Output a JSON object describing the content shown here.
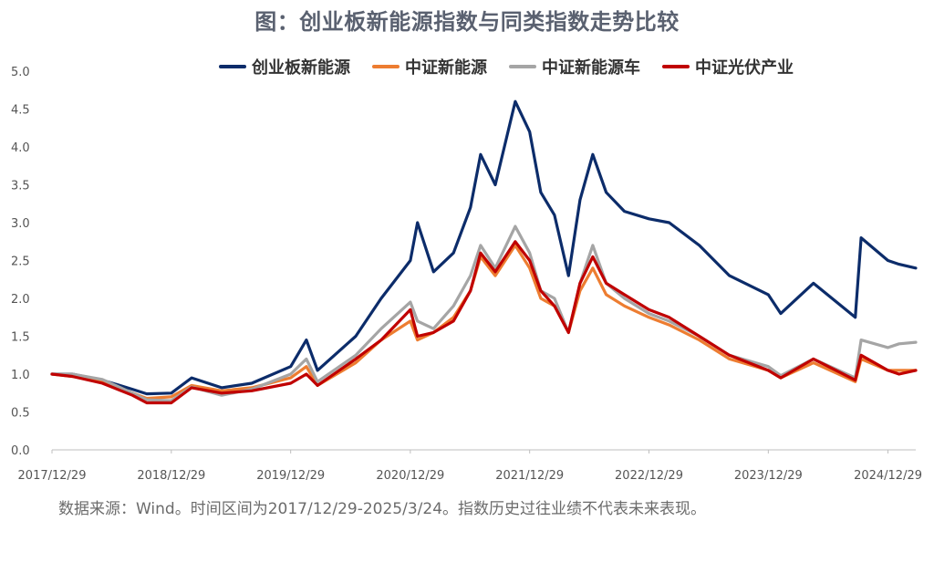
{
  "title": "图：创业板新能源指数与同类指数走势比较",
  "source": "数据来源：Wind。时间区间为2017/12/29-2025/3/24。指数历史过往业绩不代表未来表现。",
  "chart_data": {
    "type": "line",
    "title": "图：创业板新能源指数与同类指数走势比较",
    "xlabel": "",
    "ylabel": "",
    "ylim": [
      0,
      5
    ],
    "y_ticks": [
      "0.0",
      "0.5",
      "1.0",
      "1.5",
      "2.0",
      "2.5",
      "3.0",
      "3.5",
      "4.0",
      "4.5",
      "5.0"
    ],
    "x_ticks": [
      "2017/12/29",
      "2018/12/29",
      "2019/12/29",
      "2020/12/29",
      "2021/12/29",
      "2022/12/29",
      "2023/12/29",
      "2024/12/29"
    ],
    "x_range": [
      "2017/12/29",
      "2025/3/24"
    ],
    "grid": false,
    "legend_position": "top",
    "x": [
      "2017/12/29",
      "2018/03/01",
      "2018/06/01",
      "2018/09/01",
      "2018/10/15",
      "2018/12/29",
      "2019/03/01",
      "2019/06/01",
      "2019/09/01",
      "2019/12/29",
      "2020/02/15",
      "2020/03/20",
      "2020/07/15",
      "2020/10/01",
      "2020/12/29",
      "2021/01/20",
      "2021/03/10",
      "2021/05/10",
      "2021/07/01",
      "2021/08/01",
      "2021/09/15",
      "2021/11/15",
      "2021/12/29",
      "2022/02/01",
      "2022/03/15",
      "2022/04/27",
      "2022/06/01",
      "2022/07/10",
      "2022/08/20",
      "2022/10/15",
      "2022/12/29",
      "2023/03/01",
      "2023/06/01",
      "2023/09/01",
      "2023/12/29",
      "2024/02/05",
      "2024/05/15",
      "2024/09/20",
      "2024/10/08",
      "2024/12/29",
      "2025/02/01",
      "2025/03/24"
    ],
    "series": [
      {
        "name": "创业板新能源",
        "color": "#0c2c6a",
        "values": [
          1.0,
          1.0,
          0.92,
          0.8,
          0.74,
          0.75,
          0.95,
          0.82,
          0.88,
          1.1,
          1.45,
          1.05,
          1.5,
          2.0,
          2.5,
          3.0,
          2.35,
          2.6,
          3.2,
          3.9,
          3.5,
          4.6,
          4.2,
          3.4,
          3.1,
          2.3,
          3.3,
          3.9,
          3.4,
          3.15,
          3.05,
          3.0,
          2.7,
          2.3,
          2.05,
          1.8,
          2.2,
          1.75,
          2.8,
          2.5,
          2.45,
          2.4
        ]
      },
      {
        "name": "中证新能源",
        "color": "#ed7d31",
        "values": [
          1.0,
          0.97,
          0.9,
          0.75,
          0.68,
          0.7,
          0.85,
          0.78,
          0.82,
          0.95,
          1.1,
          0.85,
          1.15,
          1.45,
          1.7,
          1.45,
          1.55,
          1.75,
          2.1,
          2.55,
          2.3,
          2.7,
          2.4,
          2.0,
          1.9,
          1.55,
          2.1,
          2.4,
          2.05,
          1.9,
          1.75,
          1.65,
          1.45,
          1.2,
          1.05,
          0.95,
          1.15,
          0.9,
          1.2,
          1.05,
          1.05,
          1.05
        ]
      },
      {
        "name": "中证新能源车",
        "color": "#a5a5a5",
        "values": [
          1.0,
          1.0,
          0.93,
          0.75,
          0.66,
          0.65,
          0.83,
          0.72,
          0.8,
          1.0,
          1.2,
          0.9,
          1.25,
          1.6,
          1.95,
          1.7,
          1.6,
          1.9,
          2.3,
          2.7,
          2.4,
          2.95,
          2.6,
          2.1,
          2.0,
          1.55,
          2.2,
          2.7,
          2.2,
          2.0,
          1.8,
          1.7,
          1.5,
          1.25,
          1.1,
          0.98,
          1.2,
          0.95,
          1.45,
          1.35,
          1.4,
          1.42
        ]
      },
      {
        "name": "中证光伏产业",
        "color": "#c00000",
        "values": [
          1.0,
          0.97,
          0.88,
          0.72,
          0.62,
          0.62,
          0.82,
          0.75,
          0.78,
          0.88,
          1.0,
          0.85,
          1.2,
          1.45,
          1.85,
          1.5,
          1.55,
          1.7,
          2.1,
          2.6,
          2.35,
          2.75,
          2.5,
          2.1,
          1.9,
          1.55,
          2.2,
          2.55,
          2.2,
          2.05,
          1.85,
          1.75,
          1.5,
          1.25,
          1.05,
          0.95,
          1.2,
          0.92,
          1.25,
          1.05,
          1.0,
          1.05
        ]
      }
    ]
  }
}
